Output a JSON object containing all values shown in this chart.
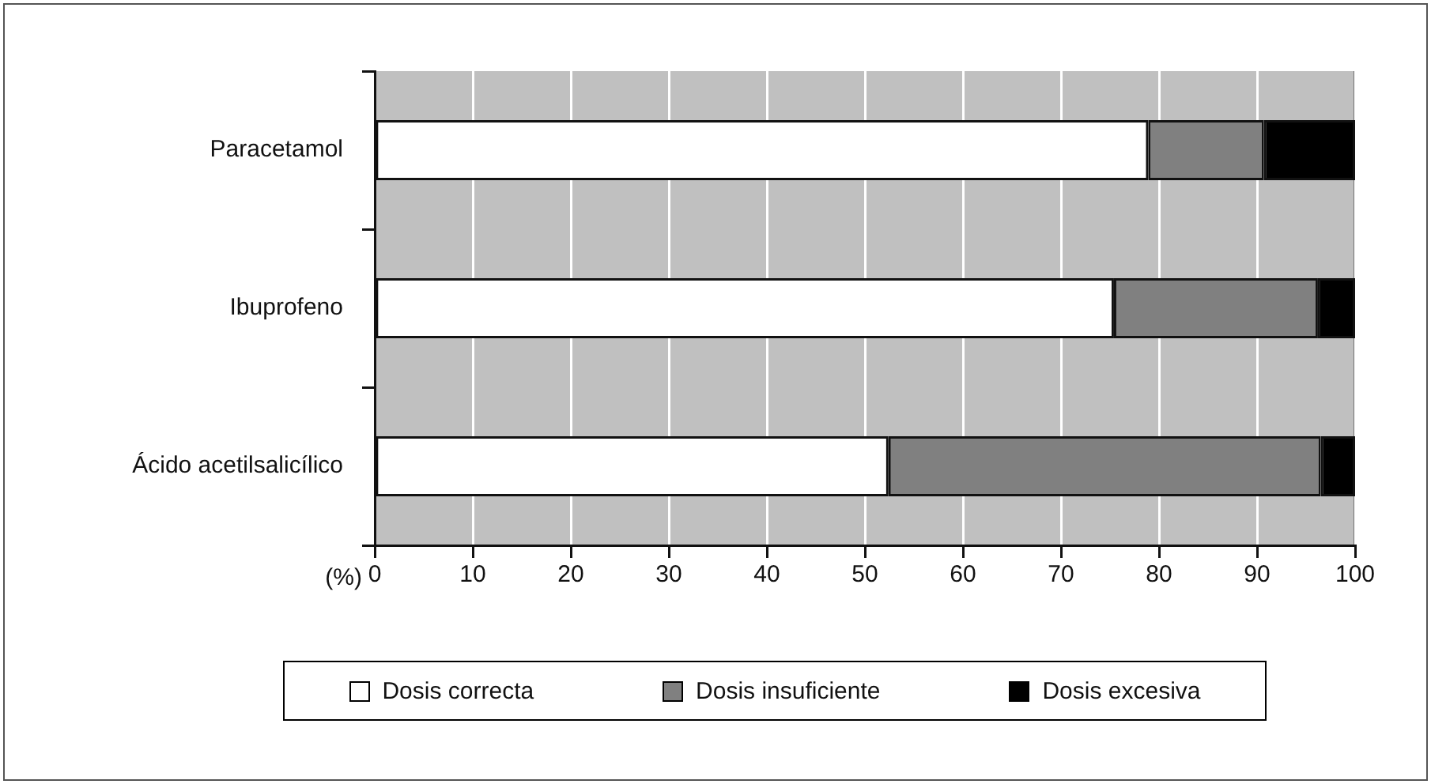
{
  "chart_data": {
    "type": "bar",
    "orientation": "horizontal",
    "stacked": true,
    "xlabel": "(%)",
    "categories": [
      "Paracetamol",
      "Ibuprofeno",
      "Ácido acetilsalicílico"
    ],
    "series": [
      {
        "name": "Dosis correcta",
        "color": "#ffffff",
        "values": [
          78.9,
          75.4,
          52.4
        ]
      },
      {
        "name": "Dosis insuficiente",
        "color": "#808080",
        "values": [
          11.8,
          20.8,
          44.1
        ]
      },
      {
        "name": "Dosis excesiva",
        "color": "#000000",
        "values": [
          9.3,
          3.8,
          3.5
        ]
      }
    ],
    "xlim": [
      0,
      100
    ],
    "xticks": [
      0,
      10,
      20,
      30,
      40,
      50,
      60,
      70,
      80,
      90,
      100
    ],
    "grid": "x",
    "legend": "bottom"
  }
}
